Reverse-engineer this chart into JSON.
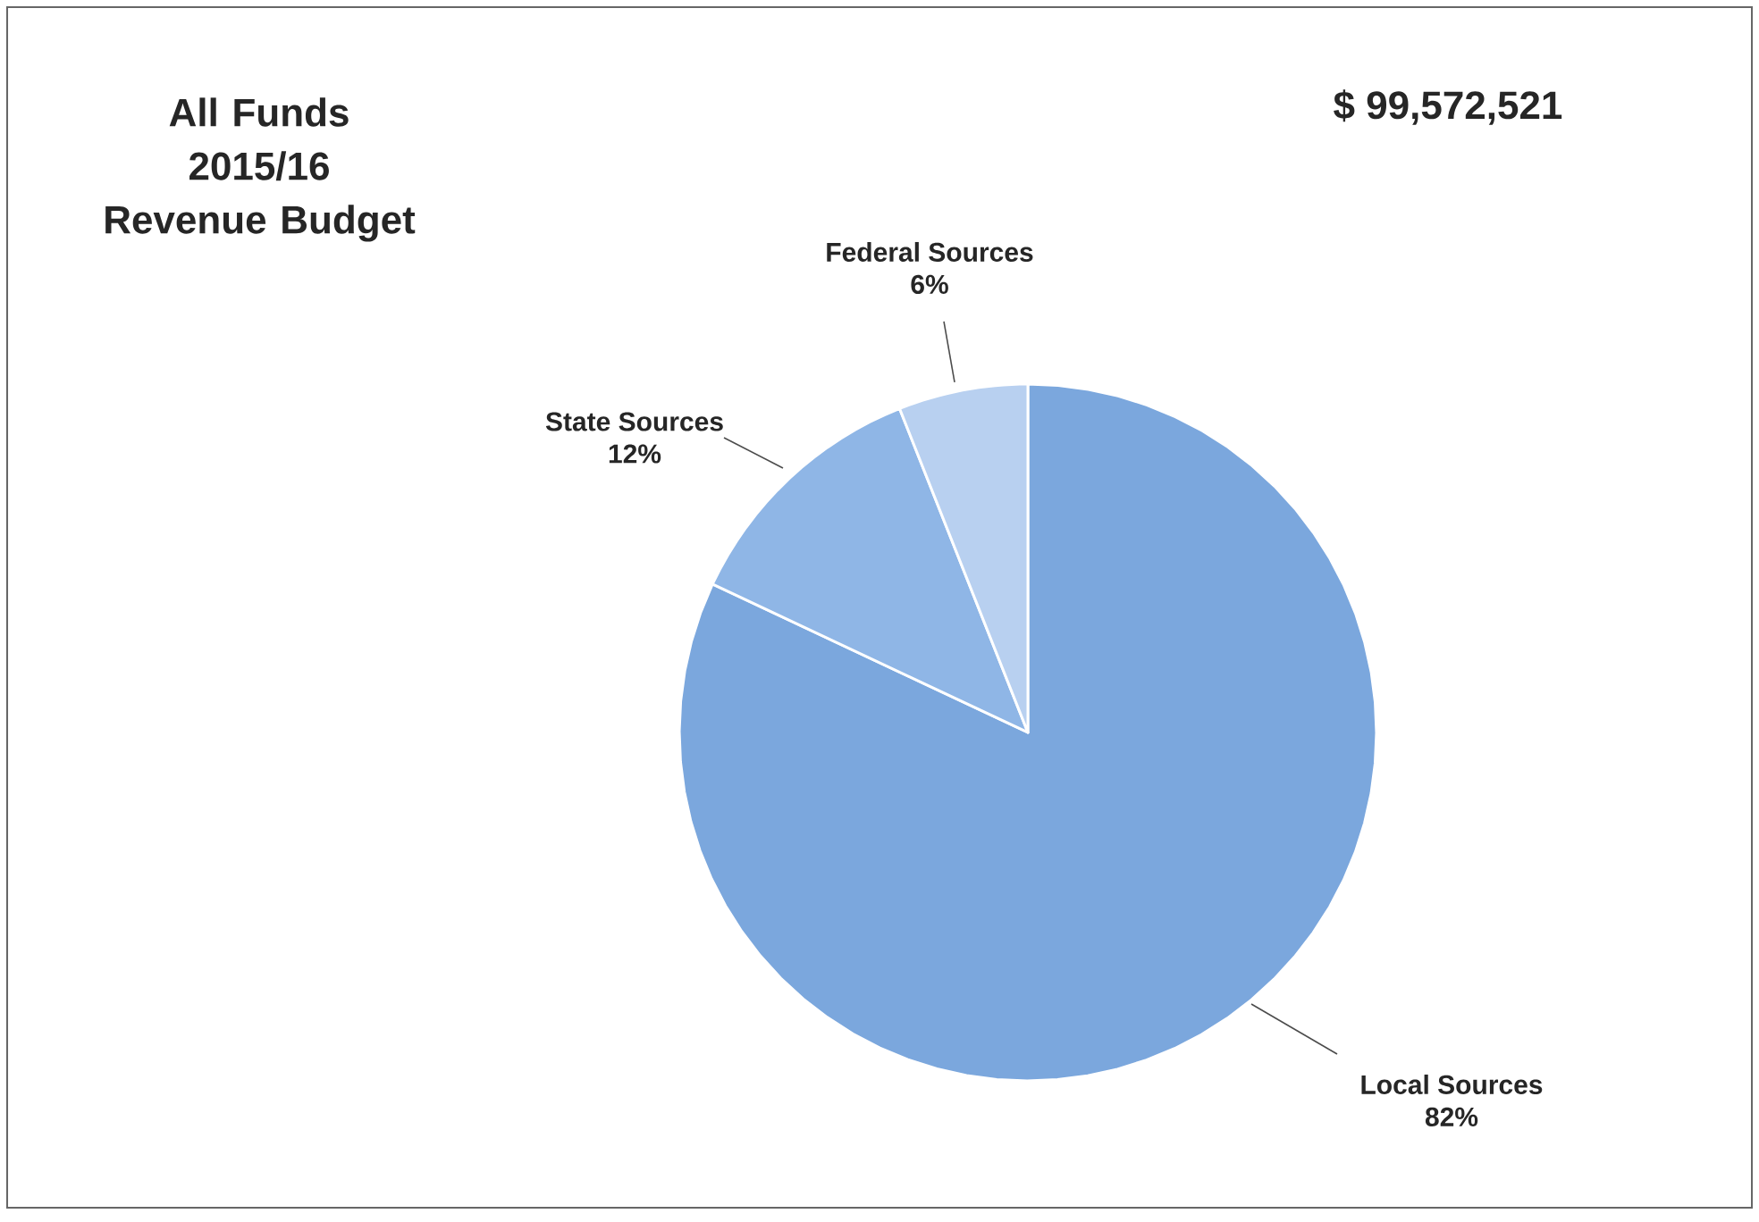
{
  "chart_data": {
    "type": "pie",
    "title": "All Funds 2015/16 Revenue Budget",
    "annotations": [
      "$ 99,572,521"
    ],
    "categories": [
      "Local Sources",
      "State Sources",
      "Federal Sources"
    ],
    "values": [
      82,
      12,
      6
    ],
    "value_labels": [
      "82%",
      "12%",
      "6%"
    ],
    "colors": [
      "#7ba7dd",
      "#8fb6e6",
      "#b8d0f0"
    ]
  }
}
